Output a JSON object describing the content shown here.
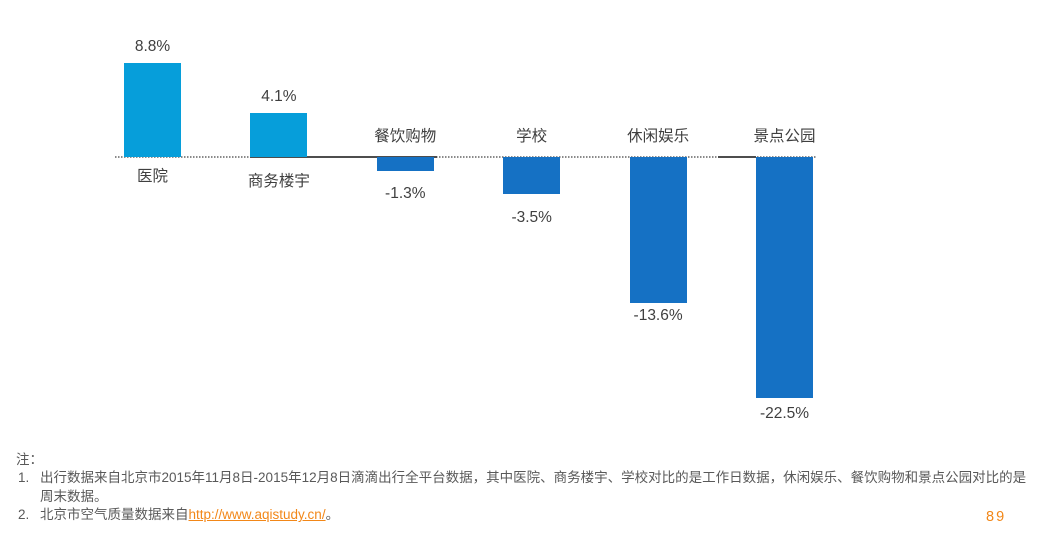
{
  "chart_data": {
    "type": "bar",
    "categories": [
      "医院",
      "商务楼宇",
      "餐饮购物",
      "学校",
      "休闲娱乐",
      "景点公园"
    ],
    "values": [
      8.8,
      4.1,
      -1.3,
      -3.5,
      -13.6,
      -22.5
    ],
    "value_labels": [
      "8.8%",
      "4.1%",
      "-1.3%",
      "-3.5%",
      "-13.6%",
      "-22.5%"
    ],
    "title": "",
    "xlabel": "",
    "ylabel": "",
    "ylim": [
      -22.5,
      8.8
    ],
    "baseline": "zero line, dotted gray, labels of positive bars below line, labels of negative bars above line",
    "legend": "none",
    "grid": false,
    "colors": {
      "positive_bar": "#069EDA",
      "negative_bar": "#1571C4"
    }
  },
  "notes": {
    "label": "注：",
    "items": [
      {
        "text": "出行数据来自北京市2015年11月8日-2015年12月8日滴滴出行全平台数据，其中医院、商务楼宇、学校对比的是工作日数据，休闲娱乐、餐饮购物和景点公园对比的是周末数据。"
      },
      {
        "text": "北京市空气质量数据来自",
        "link": "http://www.aqistudy.cn/",
        "suffix": "。"
      }
    ]
  },
  "footer": {
    "page_number": "89"
  },
  "ui_colors": {
    "label_text": "#3F3F3F",
    "note_text": "#595959",
    "accent_orange": "#F28718"
  }
}
